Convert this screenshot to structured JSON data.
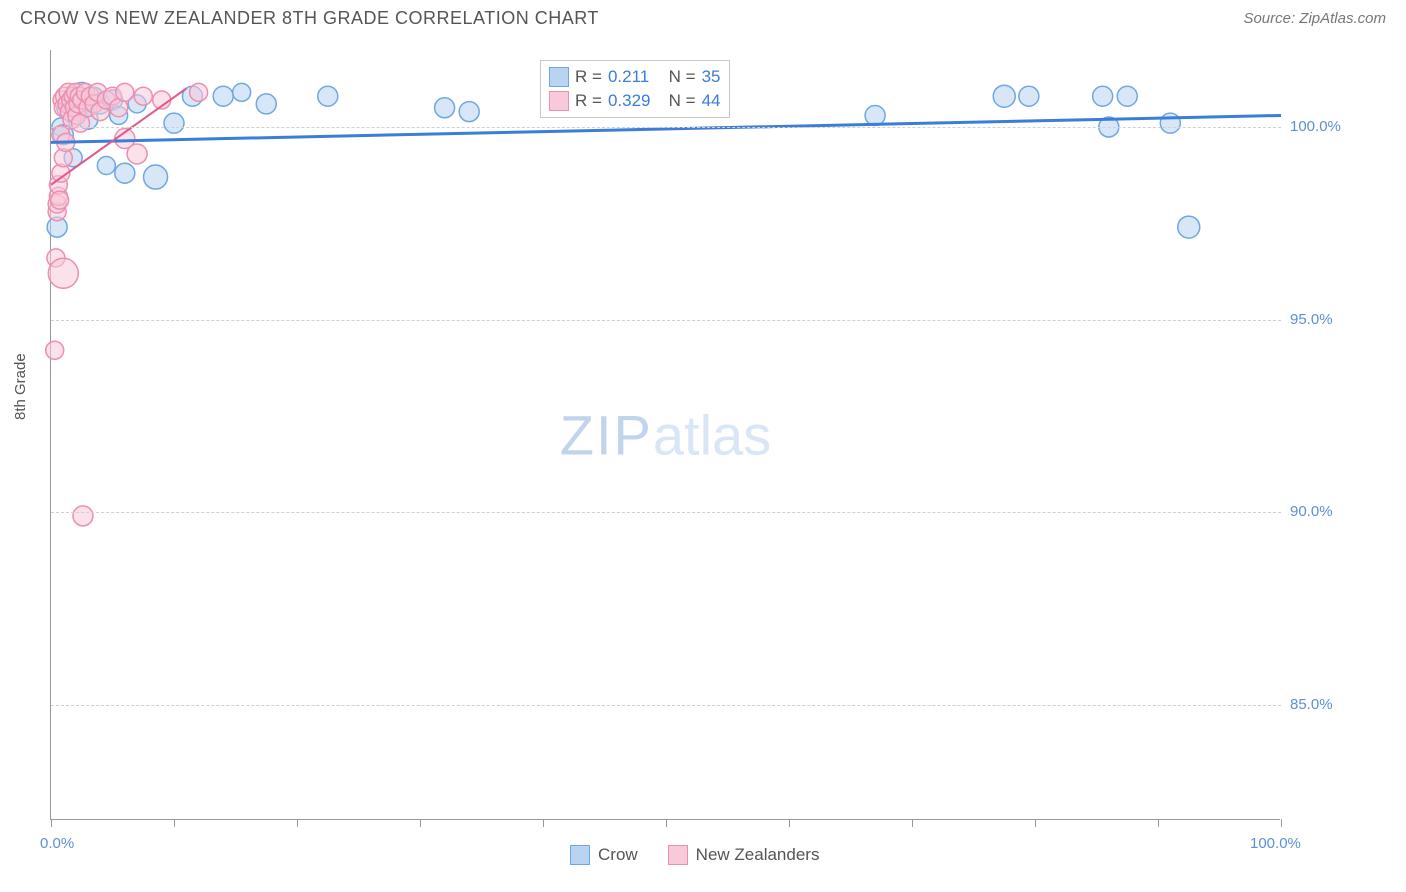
{
  "header": {
    "title": "CROW VS NEW ZEALANDER 8TH GRADE CORRELATION CHART",
    "source": "Source: ZipAtlas.com"
  },
  "chart": {
    "type": "scatter",
    "ylabel": "8th Grade",
    "label_fontsize": 15,
    "background_color": "#ffffff",
    "grid_color": "#d0d0d0",
    "xlim": [
      0,
      100
    ],
    "ylim": [
      82,
      102
    ],
    "x_range_labels": [
      "0.0%",
      "100.0%"
    ],
    "y_ticks": [
      {
        "value": 100.0,
        "label": "100.0%"
      },
      {
        "value": 95.0,
        "label": "95.0%"
      },
      {
        "value": 90.0,
        "label": "90.0%"
      },
      {
        "value": 85.0,
        "label": "85.0%"
      }
    ],
    "x_tick_positions": [
      0,
      10,
      20,
      30,
      40,
      50,
      60,
      70,
      80,
      90,
      100
    ],
    "watermark": {
      "part1": "ZIP",
      "part2": "atlas"
    },
    "series": [
      {
        "name": "Crow",
        "color_fill": "#b8d4f0",
        "color_stroke": "#6ea8e0",
        "fill_opacity": 0.55,
        "line_color": "#3b7dd8",
        "line_width": 3,
        "marker_radius": 10,
        "R": "0.211",
        "N": "35",
        "trend": {
          "x1": 0,
          "y1": 99.6,
          "x2": 100,
          "y2": 100.3
        },
        "points": [
          {
            "x": 0.5,
            "y": 97.4,
            "r": 10
          },
          {
            "x": 0.8,
            "y": 100.0,
            "r": 9
          },
          {
            "x": 1.0,
            "y": 99.8,
            "r": 10
          },
          {
            "x": 1.2,
            "y": 100.5,
            "r": 9
          },
          {
            "x": 1.5,
            "y": 100.6,
            "r": 10
          },
          {
            "x": 1.8,
            "y": 99.2,
            "r": 9
          },
          {
            "x": 2.0,
            "y": 100.7,
            "r": 10
          },
          {
            "x": 2.2,
            "y": 100.4,
            "r": 9
          },
          {
            "x": 2.5,
            "y": 100.9,
            "r": 10
          },
          {
            "x": 2.8,
            "y": 100.5,
            "r": 9
          },
          {
            "x": 3.0,
            "y": 100.2,
            "r": 10
          },
          {
            "x": 3.5,
            "y": 100.8,
            "r": 9
          },
          {
            "x": 4.0,
            "y": 100.6,
            "r": 10
          },
          {
            "x": 4.5,
            "y": 99.0,
            "r": 9
          },
          {
            "x": 5.0,
            "y": 100.7,
            "r": 10
          },
          {
            "x": 5.5,
            "y": 100.3,
            "r": 9
          },
          {
            "x": 6.0,
            "y": 98.8,
            "r": 10
          },
          {
            "x": 7.0,
            "y": 100.6,
            "r": 9
          },
          {
            "x": 8.5,
            "y": 98.7,
            "r": 12
          },
          {
            "x": 10.0,
            "y": 100.1,
            "r": 10
          },
          {
            "x": 11.5,
            "y": 100.8,
            "r": 10
          },
          {
            "x": 14.0,
            "y": 100.8,
            "r": 10
          },
          {
            "x": 15.5,
            "y": 100.9,
            "r": 9
          },
          {
            "x": 17.5,
            "y": 100.6,
            "r": 10
          },
          {
            "x": 22.5,
            "y": 100.8,
            "r": 10
          },
          {
            "x": 32.0,
            "y": 100.5,
            "r": 10
          },
          {
            "x": 34.0,
            "y": 100.4,
            "r": 10
          },
          {
            "x": 67.0,
            "y": 100.3,
            "r": 10
          },
          {
            "x": 77.5,
            "y": 100.8,
            "r": 11
          },
          {
            "x": 79.5,
            "y": 100.8,
            "r": 10
          },
          {
            "x": 85.5,
            "y": 100.8,
            "r": 10
          },
          {
            "x": 86.0,
            "y": 100.0,
            "r": 10
          },
          {
            "x": 87.5,
            "y": 100.8,
            "r": 10
          },
          {
            "x": 91.0,
            "y": 100.1,
            "r": 10
          },
          {
            "x": 92.5,
            "y": 97.4,
            "r": 11
          }
        ]
      },
      {
        "name": "New Zealanders",
        "color_fill": "#f7c9d9",
        "color_stroke": "#ec8fb0",
        "fill_opacity": 0.55,
        "line_color": "#e05a8a",
        "line_width": 2,
        "marker_radius": 9,
        "R": "0.329",
        "N": "44",
        "trend": {
          "x1": 0,
          "y1": 98.5,
          "x2": 11,
          "y2": 101.0
        },
        "points": [
          {
            "x": 0.3,
            "y": 94.2,
            "r": 9
          },
          {
            "x": 0.4,
            "y": 96.6,
            "r": 9
          },
          {
            "x": 0.5,
            "y": 97.8,
            "r": 9
          },
          {
            "x": 0.5,
            "y": 98.0,
            "r": 9
          },
          {
            "x": 0.6,
            "y": 98.2,
            "r": 9
          },
          {
            "x": 0.6,
            "y": 98.5,
            "r": 9
          },
          {
            "x": 0.7,
            "y": 98.1,
            "r": 9
          },
          {
            "x": 0.8,
            "y": 99.8,
            "r": 9
          },
          {
            "x": 0.8,
            "y": 98.8,
            "r": 9
          },
          {
            "x": 0.9,
            "y": 100.7,
            "r": 9
          },
          {
            "x": 1.0,
            "y": 99.2,
            "r": 9
          },
          {
            "x": 1.0,
            "y": 100.5,
            "r": 9
          },
          {
            "x": 1.0,
            "y": 96.2,
            "r": 15
          },
          {
            "x": 1.1,
            "y": 100.8,
            "r": 9
          },
          {
            "x": 1.2,
            "y": 99.6,
            "r": 9
          },
          {
            "x": 1.3,
            "y": 100.6,
            "r": 9
          },
          {
            "x": 1.4,
            "y": 100.9,
            "r": 9
          },
          {
            "x": 1.5,
            "y": 100.4,
            "r": 9
          },
          {
            "x": 1.6,
            "y": 100.7,
            "r": 9
          },
          {
            "x": 1.7,
            "y": 100.2,
            "r": 9
          },
          {
            "x": 1.8,
            "y": 100.8,
            "r": 9
          },
          {
            "x": 1.9,
            "y": 100.5,
            "r": 9
          },
          {
            "x": 2.0,
            "y": 100.9,
            "r": 9
          },
          {
            "x": 2.1,
            "y": 100.3,
            "r": 9
          },
          {
            "x": 2.2,
            "y": 100.6,
            "r": 9
          },
          {
            "x": 2.3,
            "y": 100.8,
            "r": 9
          },
          {
            "x": 2.4,
            "y": 100.1,
            "r": 9
          },
          {
            "x": 2.5,
            "y": 100.7,
            "r": 9
          },
          {
            "x": 2.6,
            "y": 89.9,
            "r": 10
          },
          {
            "x": 2.8,
            "y": 100.9,
            "r": 9
          },
          {
            "x": 3.0,
            "y": 100.5,
            "r": 9
          },
          {
            "x": 3.2,
            "y": 100.8,
            "r": 9
          },
          {
            "x": 3.5,
            "y": 100.6,
            "r": 9
          },
          {
            "x": 3.8,
            "y": 100.9,
            "r": 9
          },
          {
            "x": 4.0,
            "y": 100.4,
            "r": 9
          },
          {
            "x": 4.5,
            "y": 100.7,
            "r": 9
          },
          {
            "x": 5.0,
            "y": 100.8,
            "r": 9
          },
          {
            "x": 5.5,
            "y": 100.5,
            "r": 9
          },
          {
            "x": 6.0,
            "y": 100.9,
            "r": 9
          },
          {
            "x": 6.0,
            "y": 99.7,
            "r": 10
          },
          {
            "x": 7.0,
            "y": 99.3,
            "r": 10
          },
          {
            "x": 7.5,
            "y": 100.8,
            "r": 9
          },
          {
            "x": 9.0,
            "y": 100.7,
            "r": 9
          },
          {
            "x": 12.0,
            "y": 100.9,
            "r": 9
          }
        ]
      }
    ],
    "stats_box": {
      "rows": [
        {
          "swatch_fill": "#b8d4f0",
          "swatch_stroke": "#6ea8e0",
          "R_label": "R =",
          "R_val": "0.211",
          "N_label": "N =",
          "N_val": "35"
        },
        {
          "swatch_fill": "#f7c9d9",
          "swatch_stroke": "#ec8fb0",
          "R_label": "R =",
          "R_val": "0.329",
          "N_label": "N =",
          "N_val": "44"
        }
      ]
    },
    "bottom_legend": [
      {
        "swatch_fill": "#b8d4f0",
        "swatch_stroke": "#6ea8e0",
        "label": "Crow"
      },
      {
        "swatch_fill": "#f7c9d9",
        "swatch_stroke": "#ec8fb0",
        "label": "New Zealanders"
      }
    ]
  }
}
